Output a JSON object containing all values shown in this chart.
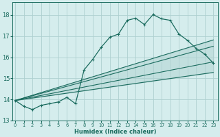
{
  "background_color": "#d5eded",
  "grid_color": "#aed0d0",
  "line_color": "#1a6b5e",
  "x_label": "Humidex (Indice chaleur)",
  "x_ticks": [
    0,
    1,
    2,
    3,
    4,
    5,
    6,
    7,
    8,
    9,
    10,
    11,
    12,
    13,
    14,
    15,
    16,
    17,
    18,
    19,
    20,
    21,
    22,
    23
  ],
  "y_ticks": [
    13,
    14,
    15,
    16,
    17,
    18
  ],
  "xlim": [
    -0.3,
    23.5
  ],
  "ylim": [
    13.0,
    18.6
  ],
  "main_x": [
    0,
    1,
    2,
    3,
    4,
    5,
    6,
    7,
    8,
    9,
    10,
    11,
    12,
    13,
    14,
    15,
    16,
    17,
    18,
    19,
    20,
    21,
    22,
    23
  ],
  "main_y": [
    13.95,
    13.68,
    13.52,
    13.72,
    13.8,
    13.88,
    14.1,
    13.8,
    15.4,
    15.9,
    16.48,
    16.95,
    17.1,
    17.75,
    17.85,
    17.55,
    18.02,
    17.82,
    17.75,
    17.1,
    16.8,
    16.42,
    16.15,
    15.72
  ],
  "fan_origin_x": 0,
  "fan_origin_y": 13.95,
  "fan_lines": [
    {
      "end_x": 23,
      "end_y": 15.28
    },
    {
      "end_x": 23,
      "end_y": 15.78
    },
    {
      "end_x": 23,
      "end_y": 16.52
    },
    {
      "end_x": 23,
      "end_y": 16.82
    }
  ]
}
